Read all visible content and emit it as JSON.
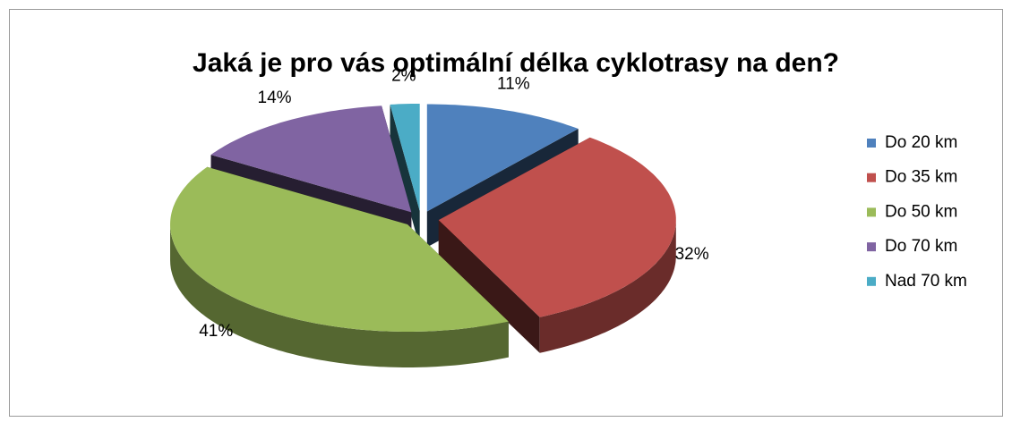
{
  "chart_data": {
    "type": "pie",
    "title": "Jaká je pro vás optimální délka cyklotrasy na den?",
    "categories": [
      "Do 20 km",
      "Do 35 km",
      "Do 50 km",
      "Do 70 km",
      "Nad 70 km"
    ],
    "values": [
      11,
      32,
      41,
      14,
      2
    ],
    "value_labels": [
      "11%",
      "32%",
      "41%",
      "14%",
      "2%"
    ],
    "colors": [
      "#4f81bd",
      "#c0504d",
      "#9bbb59",
      "#8064a2",
      "#4bacc6"
    ],
    "legend": "right"
  }
}
